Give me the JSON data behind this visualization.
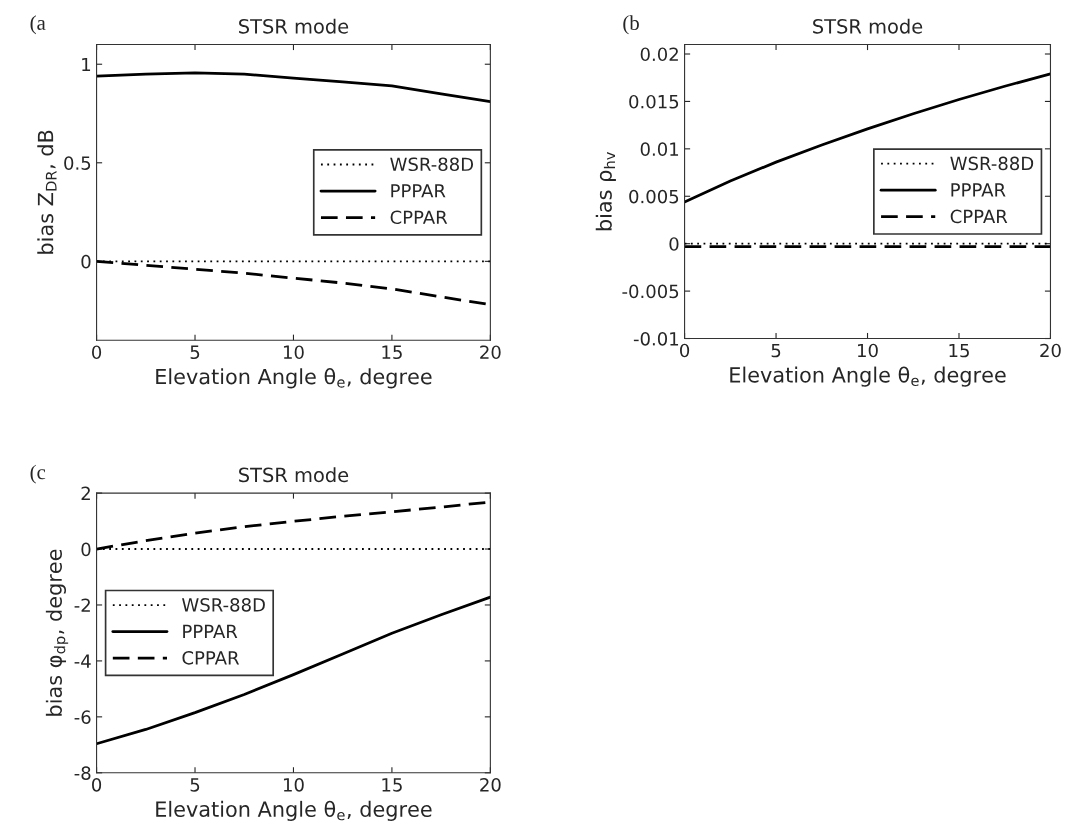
{
  "chart_data": [
    {
      "type": "line",
      "title": "STSR mode",
      "xlabel": "Elevation Angle θ$_{e}$, degree",
      "ylabel": "bias Z$_{DR}$, dB",
      "annotations": [
        "(a"
      ],
      "xlim": [
        0,
        20
      ],
      "xticks": [
        0,
        5,
        10,
        15,
        20
      ],
      "ylim": [
        -0.4,
        1.1
      ],
      "yticks": [
        0,
        0.5,
        1
      ],
      "grid": false,
      "legend": "right",
      "series": [
        {
          "name": "WSR-88D",
          "color": "#000000",
          "line_style": "dotted",
          "x": [
            0,
            20
          ],
          "values": [
            0,
            0
          ]
        },
        {
          "name": "PPPAR",
          "color": "#000000",
          "line_style": "solid",
          "x": [
            0,
            2.5,
            5,
            7.5,
            10,
            12.5,
            15,
            17.5,
            20
          ],
          "values": [
            0.94,
            0.95,
            0.956,
            0.95,
            0.93,
            0.91,
            0.89,
            0.85,
            0.81
          ]
        },
        {
          "name": "CPPAR",
          "color": "#000000",
          "line_style": "dashed",
          "x": [
            0,
            2.5,
            5,
            7.5,
            10,
            12.5,
            15,
            17.5,
            20
          ],
          "values": [
            0.0,
            -0.02,
            -0.04,
            -0.06,
            -0.085,
            -0.11,
            -0.14,
            -0.18,
            -0.22
          ]
        }
      ]
    },
    {
      "type": "line",
      "title": "STSR mode",
      "xlabel": "Elevation Angle θ$_{e}$, degree",
      "ylabel": "bias ρ$_{hv}$",
      "annotations": [
        "(b"
      ],
      "xlim": [
        0,
        20
      ],
      "xticks": [
        0,
        5,
        10,
        15,
        20
      ],
      "ylim": [
        -0.01,
        0.021
      ],
      "yticks": [
        -0.01,
        -0.005,
        0,
        0.005,
        0.01,
        0.015,
        0.02
      ],
      "grid": false,
      "legend": "right",
      "series": [
        {
          "name": "WSR-88D",
          "color": "#000000",
          "line_style": "dotted",
          "x": [
            0,
            20
          ],
          "values": [
            0,
            0
          ]
        },
        {
          "name": "PPPAR",
          "color": "#000000",
          "line_style": "solid",
          "x": [
            0,
            2.5,
            5,
            7.5,
            10,
            12.5,
            15,
            17.5,
            20
          ],
          "values": [
            0.0044,
            0.0066,
            0.0086,
            0.0104,
            0.0121,
            0.0137,
            0.0152,
            0.0166,
            0.0179
          ]
        },
        {
          "name": "CPPAR",
          "color": "#000000",
          "line_style": "dashed",
          "x": [
            0,
            20
          ],
          "values": [
            -0.0003,
            -0.0003
          ]
        }
      ]
    },
    {
      "type": "line",
      "title": "STSR mode",
      "xlabel": "Elevation Angle θ$_{e}$, degree",
      "ylabel": "bias φ$_{dp}$, degree",
      "annotations": [
        "(c"
      ],
      "xlim": [
        0,
        20
      ],
      "xticks": [
        0,
        5,
        10,
        15,
        20
      ],
      "ylim": [
        -8,
        2
      ],
      "yticks": [
        -8,
        -6,
        -4,
        -2,
        0,
        2
      ],
      "grid": false,
      "legend": "left",
      "series": [
        {
          "name": "WSR-88D",
          "color": "#000000",
          "line_style": "dotted",
          "x": [
            0,
            20
          ],
          "values": [
            0,
            0
          ]
        },
        {
          "name": "PPPAR",
          "color": "#000000",
          "line_style": "solid",
          "x": [
            0,
            2.5,
            5,
            7.5,
            10,
            12.5,
            15,
            17.5,
            20
          ],
          "values": [
            -6.96,
            -6.45,
            -5.85,
            -5.2,
            -4.49,
            -3.75,
            -3.01,
            -2.35,
            -1.72
          ]
        },
        {
          "name": "CPPAR",
          "color": "#000000",
          "line_style": "dashed",
          "x": [
            0,
            2.5,
            5,
            7.5,
            10,
            12.5,
            15,
            17.5,
            20
          ],
          "values": [
            0,
            0.3,
            0.57,
            0.8,
            0.99,
            1.17,
            1.33,
            1.5,
            1.68
          ]
        }
      ]
    }
  ]
}
